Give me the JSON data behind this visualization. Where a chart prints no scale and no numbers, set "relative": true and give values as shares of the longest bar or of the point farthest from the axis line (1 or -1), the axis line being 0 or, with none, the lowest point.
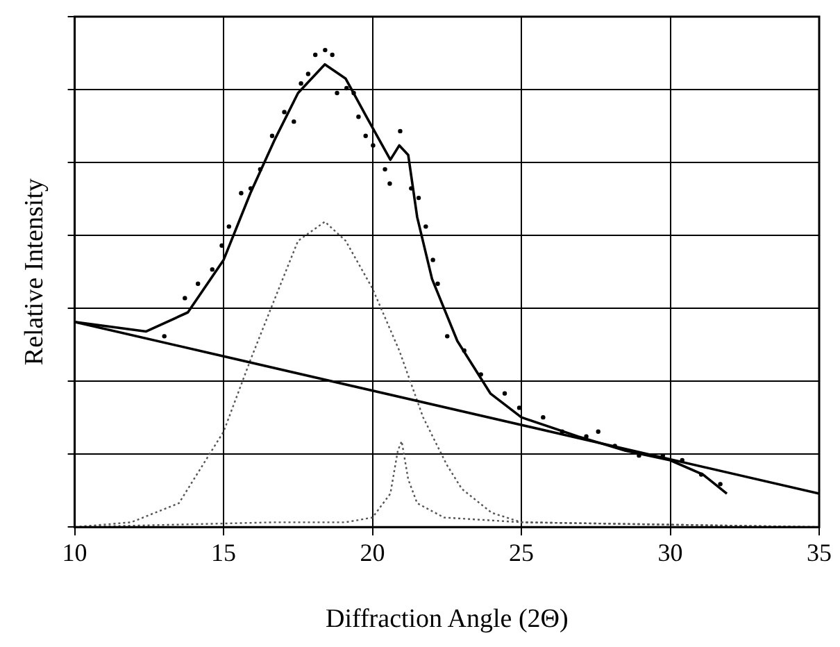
{
  "chart_data": {
    "type": "line",
    "xlabel": "Diffraction Angle (2Θ)",
    "ylabel": "Relative Intensity",
    "relative": true,
    "xlim": [
      10,
      35
    ],
    "xticks": [
      10,
      15,
      20,
      25,
      30,
      35
    ],
    "tick_labels": "x",
    "grid": true,
    "legend": false,
    "marker": "none",
    "series": [
      {
        "type": "scatter",
        "marker": "circle",
        "color": "#000000",
        "x": [
          13.01,
          13.7,
          14.14,
          14.62,
          14.94,
          15.18,
          15.59,
          15.91,
          16.23,
          16.63,
          17.04,
          17.36,
          17.6,
          17.84,
          18.08,
          18.41,
          18.65,
          18.81,
          19.13,
          19.37,
          19.53,
          19.77,
          20.02,
          20.42,
          20.58,
          20.93,
          21.3,
          21.55,
          21.79,
          22.03,
          22.19,
          22.51,
          23.08,
          23.64,
          24.44,
          24.93,
          25.73,
          26.37,
          27.18,
          27.58,
          28.14,
          28.95,
          29.75,
          30.4,
          31.04,
          31.68
        ],
        "values": [
          0.4,
          0.48,
          0.51,
          0.54,
          0.59,
          0.63,
          0.7,
          0.71,
          0.75,
          0.82,
          0.87,
          0.85,
          0.93,
          0.95,
          0.99,
          1,
          0.99,
          0.91,
          0.92,
          0.91,
          0.86,
          0.82,
          0.8,
          0.75,
          0.72,
          0.83,
          0.71,
          0.69,
          0.63,
          0.56,
          0.51,
          0.4,
          0.37,
          0.32,
          0.28,
          0.25,
          0.23,
          0.2,
          0.19,
          0.2,
          0.17,
          0.15,
          0.15,
          0.14,
          0.11,
          0.09
        ]
      },
      {
        "color": "#000000",
        "line_style": "solid",
        "x": [
          10,
          12.4,
          13.8,
          15,
          15.9,
          16.7,
          17.5,
          18.4,
          19.1,
          19.8,
          20.6,
          20.9,
          21.2,
          21.5,
          22.0,
          22.85,
          23.96,
          25,
          26.9,
          28.5,
          30,
          31.1,
          31.9
        ],
        "values": [
          0.43,
          0.41,
          0.45,
          0.56,
          0.7,
          0.81,
          0.91,
          0.97,
          0.94,
          0.86,
          0.77,
          0.8,
          0.78,
          0.65,
          0.52,
          0.39,
          0.28,
          0.23,
          0.19,
          0.16,
          0.14,
          0.11,
          0.07
        ]
      },
      {
        "color": "#000000",
        "line_style": "solid",
        "x": [
          10,
          35
        ],
        "values": [
          0.43,
          0.07
        ]
      },
      {
        "color": "#555555",
        "line_style": "dotted",
        "x": [
          10,
          11.9,
          13.5,
          15,
          15.9,
          16.6,
          17.5,
          18.4,
          19.1,
          20,
          20.9,
          21.7,
          22.5,
          23,
          24,
          25,
          35
        ],
        "values": [
          0,
          0.01,
          0.05,
          0.2,
          0.35,
          0.46,
          0.6,
          0.64,
          0.6,
          0.5,
          0.37,
          0.23,
          0.13,
          0.08,
          0.03,
          0.01,
          0
        ]
      },
      {
        "color": "#555555",
        "line_style": "dotted",
        "x": [
          10,
          16.7,
          19.1,
          20,
          20.6,
          20.85,
          20.98,
          21.2,
          21.5,
          22.4,
          25,
          35
        ],
        "values": [
          0,
          0.01,
          0.01,
          0.02,
          0.07,
          0.16,
          0.18,
          0.1,
          0.05,
          0.02,
          0.01,
          0
        ]
      }
    ]
  }
}
